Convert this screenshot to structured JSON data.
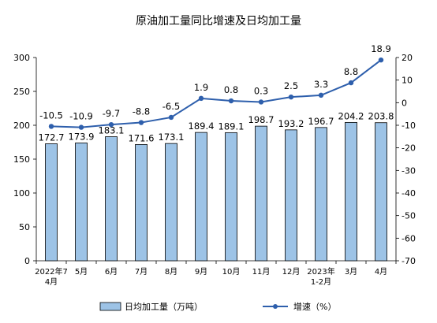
{
  "chart_data": {
    "type": "bar+line",
    "title": "原油加工量同比增速及日均加工量",
    "categories": [
      [
        "2022年7",
        "4月"
      ],
      [
        "5月"
      ],
      [
        "6月"
      ],
      [
        "7月"
      ],
      [
        "8月"
      ],
      [
        "9月"
      ],
      [
        "10月"
      ],
      [
        "11月"
      ],
      [
        "12月"
      ],
      [
        "2023年",
        "1-2月"
      ],
      [
        "3月"
      ],
      [
        "4月"
      ]
    ],
    "bar_series": {
      "name": "日均加工量（万吨）",
      "values": [
        172.7,
        173.9,
        183.1,
        171.6,
        173.1,
        189.4,
        189.1,
        198.7,
        193.2,
        196.7,
        204.2,
        203.8
      ],
      "labels": [
        "172.7",
        "173.9",
        "183.1",
        "171.6",
        "173.1",
        "189.4",
        "189.1",
        "198.7",
        "193.2",
        "196.7",
        "204.2",
        "203.8"
      ],
      "color": "#9dc3e6",
      "border": "#000000"
    },
    "line_series": {
      "name": "增速（%）",
      "values": [
        -10.5,
        -10.9,
        -9.7,
        -8.8,
        -6.5,
        1.9,
        0.8,
        0.3,
        2.5,
        3.3,
        8.8,
        18.9
      ],
      "labels": [
        "-10.5",
        "-10.9",
        "-9.7",
        "-8.8",
        "-6.5",
        "1.9",
        "0.8",
        "0.3",
        "2.5",
        "3.3",
        "8.8",
        "18.9"
      ],
      "color": "#2e5fac"
    },
    "y_left": {
      "min": 0,
      "max": 300,
      "ticks": [
        0,
        50,
        100,
        150,
        200,
        250,
        300
      ]
    },
    "y_right": {
      "min": -70,
      "max": 20,
      "ticks": [
        20,
        10,
        0,
        -10,
        -20,
        -30,
        -40,
        -50,
        -60,
        -70
      ]
    },
    "legend": {
      "placement": "bottom"
    },
    "grid": false
  }
}
